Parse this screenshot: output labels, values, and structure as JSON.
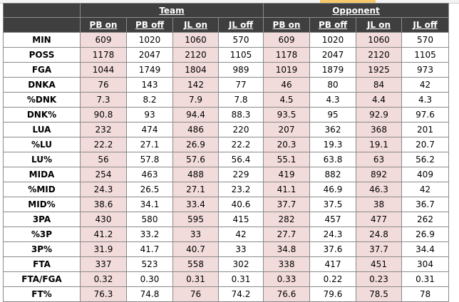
{
  "groups": {
    "team": "Team",
    "opponent": "Opponent"
  },
  "columns": [
    "PB on",
    "PB off",
    "JL on",
    "JL off",
    "PB on",
    "PB off",
    "JL on",
    "JL off"
  ],
  "rows": [
    {
      "label": "MIN",
      "values": [
        "609",
        "1020",
        "1060",
        "570",
        "609",
        "1020",
        "1060",
        "570"
      ]
    },
    {
      "label": "POSS",
      "values": [
        "1178",
        "2047",
        "2120",
        "1105",
        "1178",
        "2047",
        "2120",
        "1105"
      ]
    },
    {
      "label": "FGA",
      "values": [
        "1044",
        "1749",
        "1804",
        "989",
        "1019",
        "1879",
        "1925",
        "973"
      ]
    },
    {
      "label": "DNKA",
      "values": [
        "76",
        "143",
        "142",
        "77",
        "46",
        "80",
        "84",
        "42"
      ]
    },
    {
      "label": "%DNK",
      "values": [
        "7.3",
        "8.2",
        "7.9",
        "7.8",
        "4.5",
        "4.3",
        "4.4",
        "4.3"
      ]
    },
    {
      "label": "DNK%",
      "values": [
        "90.8",
        "93",
        "94.4",
        "88.3",
        "93.5",
        "95",
        "92.9",
        "97.6"
      ]
    },
    {
      "label": "LUA",
      "values": [
        "232",
        "474",
        "486",
        "220",
        "207",
        "362",
        "368",
        "201"
      ]
    },
    {
      "label": "%LU",
      "values": [
        "22.2",
        "27.1",
        "26.9",
        "22.2",
        "20.3",
        "19.3",
        "19.1",
        "20.7"
      ]
    },
    {
      "label": "LU%",
      "values": [
        "56",
        "57.8",
        "57.6",
        "56.4",
        "55.1",
        "63.8",
        "63",
        "56.2"
      ]
    },
    {
      "label": "MIDA",
      "values": [
        "254",
        "463",
        "488",
        "229",
        "419",
        "882",
        "892",
        "409"
      ]
    },
    {
      "label": "%MID",
      "values": [
        "24.3",
        "26.5",
        "27.1",
        "23.2",
        "41.1",
        "46.9",
        "46.3",
        "42"
      ]
    },
    {
      "label": "MID%",
      "values": [
        "38.6",
        "34.1",
        "33.4",
        "40.6",
        "37.7",
        "37.5",
        "38",
        "36.7"
      ]
    },
    {
      "label": "3PA",
      "values": [
        "430",
        "580",
        "595",
        "415",
        "282",
        "457",
        "477",
        "262"
      ]
    },
    {
      "label": "%3P",
      "values": [
        "41.2",
        "33.2",
        "33",
        "42",
        "27.7",
        "24.3",
        "24.8",
        "26.9"
      ]
    },
    {
      "label": "3P%",
      "values": [
        "31.9",
        "41.7",
        "40.7",
        "33",
        "34.8",
        "37.6",
        "37.7",
        "34.4"
      ]
    },
    {
      "label": "FTA",
      "values": [
        "337",
        "523",
        "558",
        "302",
        "338",
        "417",
        "451",
        "304"
      ]
    },
    {
      "label": "FTA/FGA",
      "values": [
        "0.32",
        "0.30",
        "0.31",
        "0.31",
        "0.33",
        "0.22",
        "0.23",
        "0.31"
      ]
    },
    {
      "label": "FT%",
      "values": [
        "76.3",
        "74.8",
        "76",
        "74.2",
        "76.6",
        "79.6",
        "78.5",
        "78"
      ]
    }
  ],
  "colors": {
    "header_bg": "#3f3f3f",
    "header_text": "#ffffff",
    "on_cell_bg": "#f2dcdb",
    "off_cell_bg": "#ffffff",
    "border": "#8a8a8a"
  }
}
